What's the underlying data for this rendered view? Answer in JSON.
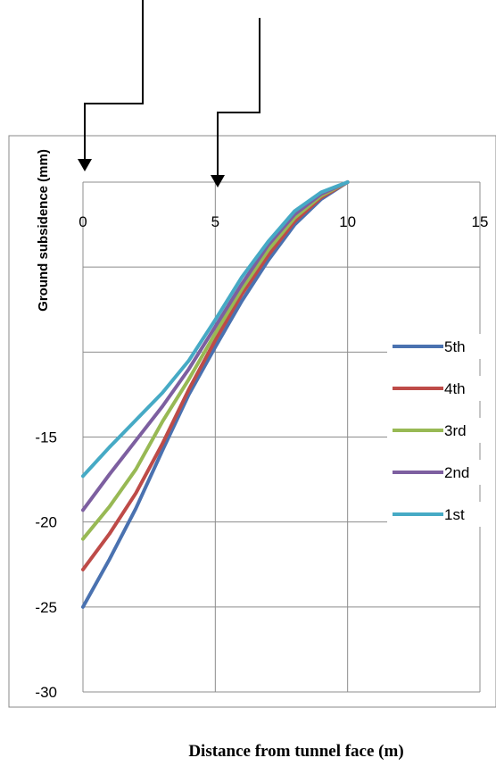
{
  "chart_data": {
    "type": "line",
    "xlabel": "Distance from tunnel face (m)",
    "ylabel": "Ground  subsidence (mm)",
    "x_ticks": [
      "0",
      "5",
      "10",
      "15"
    ],
    "y_ticks": [
      "-15",
      "-20",
      "-25",
      "-30"
    ],
    "xlim": [
      0,
      15
    ],
    "ylim": [
      -30,
      0
    ],
    "grid": true,
    "legend_position": "right",
    "x": [
      0,
      1,
      2,
      3,
      4,
      5,
      6,
      7,
      8,
      9,
      10
    ],
    "series": [
      {
        "name": "5th",
        "color": "#4a72b0",
        "values": [
          -25.0,
          -22.2,
          -19.2,
          -15.8,
          -12.5,
          -9.7,
          -7.0,
          -4.6,
          -2.5,
          -1.0,
          0.0
        ]
      },
      {
        "name": "4th",
        "color": "#be4b48",
        "values": [
          -22.8,
          -20.7,
          -18.3,
          -15.4,
          -12.2,
          -9.3,
          -6.6,
          -4.3,
          -2.3,
          -0.9,
          0.0
        ]
      },
      {
        "name": "3rd",
        "color": "#98b954",
        "values": [
          -21.0,
          -19.1,
          -16.9,
          -14.1,
          -11.6,
          -8.9,
          -6.3,
          -4.0,
          -2.1,
          -0.8,
          0.0
        ]
      },
      {
        "name": "2nd",
        "color": "#7d5fa0",
        "values": [
          -19.3,
          -17.2,
          -15.2,
          -13.2,
          -11.0,
          -8.5,
          -6.0,
          -3.7,
          -1.9,
          -0.7,
          0.0
        ]
      },
      {
        "name": "1st",
        "color": "#46aac5",
        "values": [
          -17.3,
          -15.6,
          -14.0,
          -12.4,
          -10.5,
          -8.1,
          -5.6,
          -3.5,
          -1.7,
          -0.6,
          0.0
        ]
      }
    ]
  }
}
